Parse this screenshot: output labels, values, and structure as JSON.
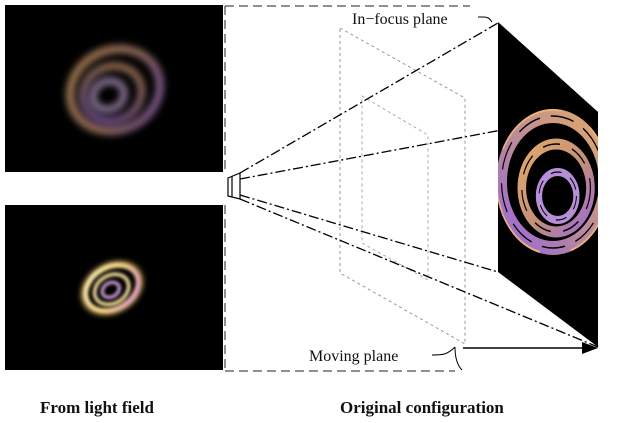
{
  "labels": {
    "in_focus_plane": "In−focus plane",
    "moving_plane": "Moving plane"
  },
  "captions": {
    "from_light_field": "From light field",
    "original_configuration": "Original configuration"
  },
  "colors": {
    "panel_background": "#000000",
    "ring_gold": "#d9a56a",
    "ring_violet": "#9b6ad6",
    "ring_bright": "#fff3c0",
    "line": "#000000",
    "dashed_plane": "#999999"
  }
}
